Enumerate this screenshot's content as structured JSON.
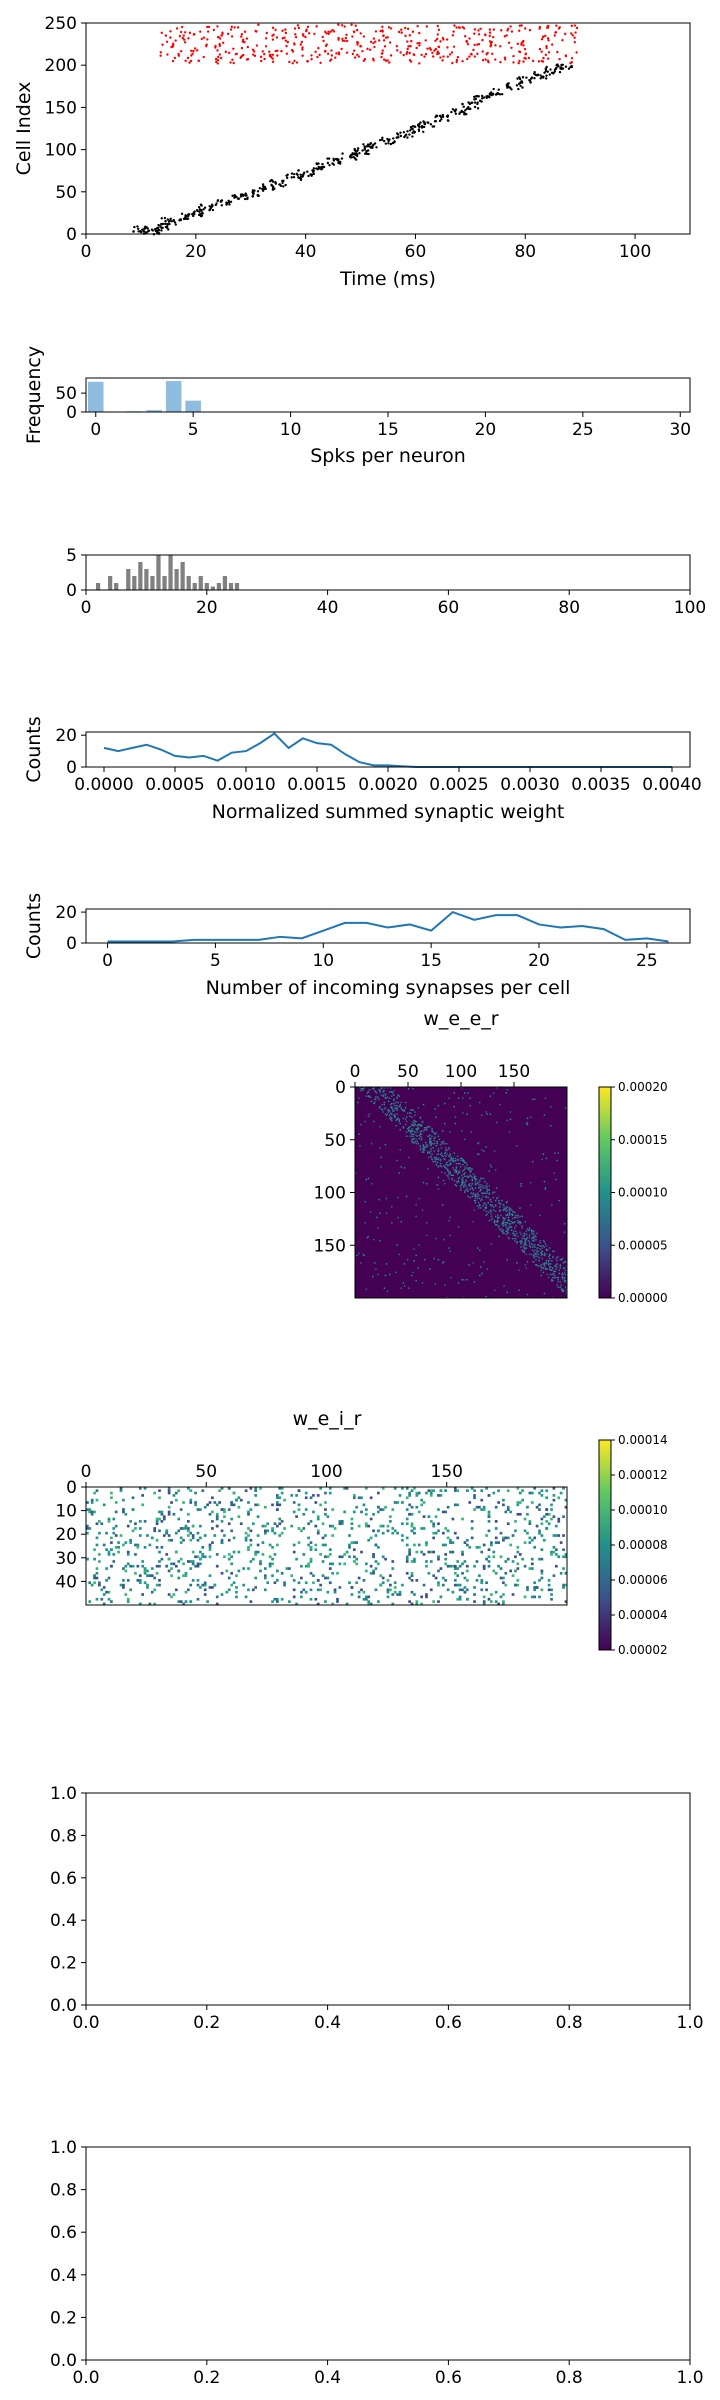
{
  "chart_data": [
    {
      "type": "scatter",
      "xlabel": "Time (ms)",
      "ylabel": "Cell Index",
      "xlim": [
        0,
        110
      ],
      "ylim": [
        0,
        250
      ],
      "xticks": [
        "0",
        "20",
        "40",
        "60",
        "80",
        "100"
      ],
      "yticks": [
        "0",
        "50",
        "100",
        "150",
        "200",
        "250"
      ],
      "series": [
        {
          "color": "#000000",
          "x": [
            10,
            12,
            14,
            15,
            18,
            20,
            22,
            25,
            28,
            30,
            33,
            35,
            38,
            40,
            43,
            45,
            48,
            50,
            52,
            55,
            58,
            60,
            62,
            65,
            68,
            70,
            72,
            75,
            78,
            80,
            83,
            85,
            87
          ],
          "y": [
            5,
            3,
            8,
            15,
            20,
            25,
            32,
            38,
            45,
            48,
            55,
            60,
            68,
            72,
            80,
            86,
            92,
            98,
            104,
            110,
            118,
            124,
            130,
            137,
            145,
            152,
            160,
            168,
            175,
            182,
            188,
            194,
            198
          ]
        },
        {
          "color": "#ff0000",
          "x": [
            15,
            18,
            20,
            23,
            25,
            28,
            30,
            33,
            35,
            38,
            40,
            43,
            45,
            48,
            50,
            53,
            55,
            58,
            60,
            63,
            65,
            68,
            70,
            73,
            75,
            78,
            80,
            83,
            85,
            88
          ],
          "y": [
            205,
            240,
            222,
            212,
            245,
            230,
            208,
            238,
            218,
            242,
            226,
            210,
            235,
            245,
            215,
            228,
            240,
            205,
            232,
            220,
            244,
            210,
            236,
            226,
            213,
            241,
            218,
            230,
            206,
            234
          ]
        }
      ]
    },
    {
      "type": "bar",
      "xlabel": "Spks per neuron",
      "ylabel": "Frequency",
      "xlim": [
        -0.5,
        30.5
      ],
      "ylim": [
        0,
        90
      ],
      "xticks": [
        "0",
        "5",
        "10",
        "15",
        "20",
        "25",
        "30"
      ],
      "yticks": [
        "0",
        "50"
      ],
      "color": "#8fbddf",
      "x": [
        0,
        1,
        2,
        3,
        4,
        5,
        6
      ],
      "values": [
        80,
        0,
        2,
        5,
        82,
        30,
        1
      ]
    },
    {
      "type": "bar",
      "xlabel": "",
      "ylabel": "",
      "xlim": [
        0,
        100
      ],
      "ylim": [
        0,
        5
      ],
      "xticks": [
        "0",
        "20",
        "40",
        "60",
        "80",
        "100"
      ],
      "yticks": [
        "0",
        "5"
      ],
      "color": "#808080",
      "x": [
        2,
        4,
        5,
        7,
        8,
        9,
        10,
        11,
        12,
        13,
        14,
        15,
        16,
        17,
        18,
        19,
        20,
        21,
        22,
        23,
        24,
        25
      ],
      "values": [
        1,
        2,
        1,
        3,
        2,
        4,
        3,
        2,
        5,
        2,
        5,
        3,
        4,
        2,
        1,
        2,
        1,
        0.5,
        1,
        2,
        1,
        1
      ]
    },
    {
      "type": "line",
      "xlabel": "Normalized summed synaptic weight",
      "ylabel": "Counts",
      "xlim": [
        0,
        0.004
      ],
      "ylim": [
        0,
        22
      ],
      "xticks": [
        "0.0000",
        "0.0005",
        "0.0010",
        "0.0015",
        "0.0020",
        "0.0025",
        "0.0030",
        "0.0035",
        "0.0040"
      ],
      "yticks": [
        "0",
        "20"
      ],
      "color": "#1f77b4",
      "x": [
        0,
        0.0001,
        0.0002,
        0.0003,
        0.0004,
        0.0005,
        0.0006,
        0.0007,
        0.0008,
        0.0009,
        0.001,
        0.0011,
        0.0012,
        0.0013,
        0.0014,
        0.0015,
        0.0016,
        0.0017,
        0.0018,
        0.0019,
        0.002,
        0.0021,
        0.0022,
        0.0023,
        0.0025,
        0.003,
        0.0035,
        0.004
      ],
      "values": [
        12,
        10,
        12,
        14,
        11,
        7,
        6,
        7,
        4,
        9,
        10,
        15,
        21,
        12,
        18,
        15,
        14,
        8,
        3,
        1,
        1,
        0.5,
        0,
        0,
        0,
        0,
        0,
        0
      ]
    },
    {
      "type": "line",
      "xlabel": "Number of incoming synapses per cell",
      "ylabel": "Counts",
      "xlim": [
        -1,
        27
      ],
      "ylim": [
        0,
        22
      ],
      "xticks": [
        "0",
        "5",
        "10",
        "15",
        "20",
        "25"
      ],
      "yticks": [
        "0",
        "20"
      ],
      "color": "#1f77b4",
      "x": [
        0,
        1,
        2,
        3,
        4,
        5,
        6,
        7,
        8,
        9,
        10,
        11,
        12,
        13,
        14,
        15,
        16,
        17,
        18,
        19,
        20,
        21,
        22,
        23,
        24,
        25,
        26
      ],
      "values": [
        1,
        1,
        1,
        1,
        2,
        2,
        2,
        2,
        4,
        3,
        8,
        13,
        13,
        10,
        12,
        8,
        20,
        15,
        18,
        18,
        12,
        10,
        11,
        9,
        2,
        3,
        1
      ]
    },
    {
      "type": "heatmap",
      "title": "w_e_e_r",
      "xticks": [
        "0",
        "50",
        "100",
        "150"
      ],
      "yticks": [
        "0",
        "50",
        "100",
        "150"
      ],
      "size": [
        200,
        200
      ],
      "colorbar_ticks": [
        "0.00000",
        "0.00005",
        "0.00010",
        "0.00015",
        "0.00020"
      ],
      "colormap": "viridis"
    },
    {
      "type": "heatmap",
      "title": "w_e_i_r",
      "xticks": [
        "0",
        "50",
        "100",
        "150"
      ],
      "yticks": [
        "0",
        "10",
        "20",
        "30",
        "40"
      ],
      "size": [
        200,
        50
      ],
      "colorbar_ticks": [
        "0.00002",
        "0.00004",
        "0.00006",
        "0.00008",
        "0.00010",
        "0.00012",
        "0.00014"
      ],
      "colormap": "viridis"
    },
    {
      "type": "line",
      "xticks": [
        "0.0",
        "0.2",
        "0.4",
        "0.6",
        "0.8",
        "1.0"
      ],
      "yticks": [
        "0.0",
        "0.2",
        "0.4",
        "0.6",
        "0.8",
        "1.0"
      ],
      "xlim": [
        0,
        1
      ],
      "ylim": [
        0,
        1
      ]
    },
    {
      "type": "line",
      "xticks": [
        "0.0",
        "0.2",
        "0.4",
        "0.6",
        "0.8",
        "1.0"
      ],
      "yticks": [
        "0.0",
        "0.2",
        "0.4",
        "0.6",
        "0.8",
        "1.0"
      ],
      "xlim": [
        0,
        1
      ],
      "ylim": [
        0,
        1
      ]
    }
  ]
}
